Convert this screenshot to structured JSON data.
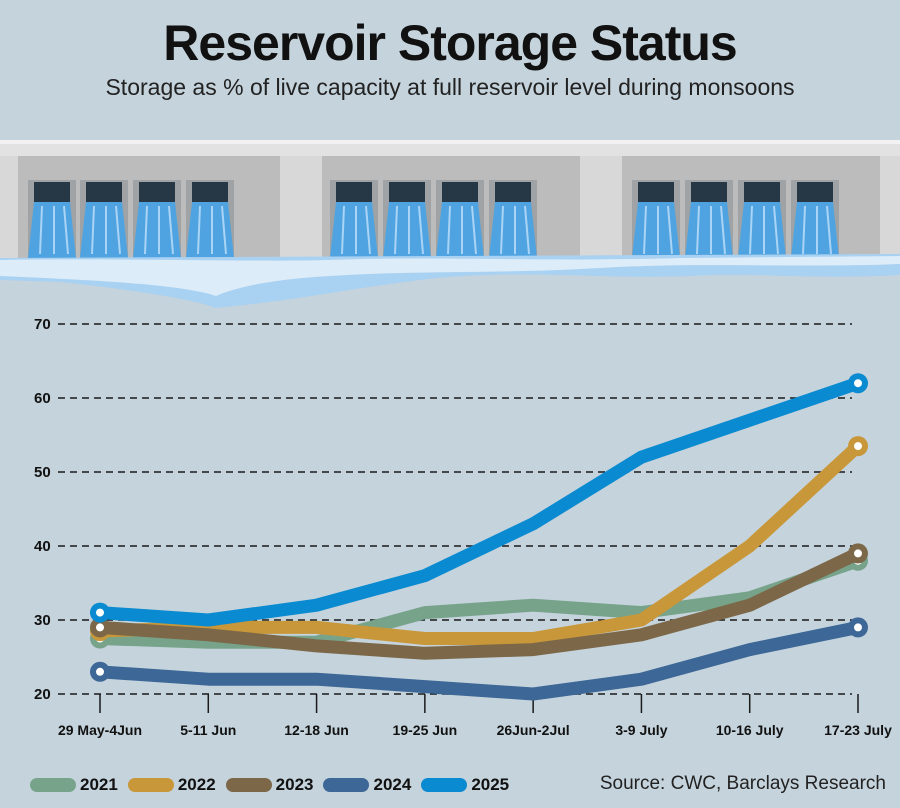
{
  "title": "Reservoir Storage Status",
  "subtitle": "Storage as % of live capacity at full reservoir level during monsoons",
  "source": "Source: CWC, Barclays Research",
  "chart_data": {
    "type": "line",
    "categories": [
      "29 May-4Jun",
      "5-11 Jun",
      "12-18 Jun",
      "19-25 Jun",
      "26Jun-2Jul",
      "3-9 July",
      "10-16 July",
      "17-23 July"
    ],
    "ylim": [
      20,
      70
    ],
    "yticks": [
      20,
      30,
      40,
      50,
      60,
      70
    ],
    "grid": true,
    "legend_position": "bottom-left",
    "series": [
      {
        "name": "2021",
        "color": "#76a38a",
        "values": [
          27.5,
          27,
          27,
          31,
          32,
          31,
          33,
          38
        ]
      },
      {
        "name": "2022",
        "color": "#c8973a",
        "values": [
          28.5,
          29,
          29,
          27.5,
          27.5,
          30,
          40,
          53.5
        ]
      },
      {
        "name": "2023",
        "color": "#7c6848",
        "values": [
          29,
          28,
          26.5,
          25.5,
          26,
          28,
          32,
          39
        ]
      },
      {
        "name": "2024",
        "color": "#3c6796",
        "values": [
          23,
          22,
          22,
          21,
          20,
          22,
          26,
          29
        ]
      },
      {
        "name": "2025",
        "color": "#0a8ad0",
        "values": [
          31,
          30,
          32,
          36,
          43,
          52,
          57,
          62
        ]
      }
    ]
  }
}
